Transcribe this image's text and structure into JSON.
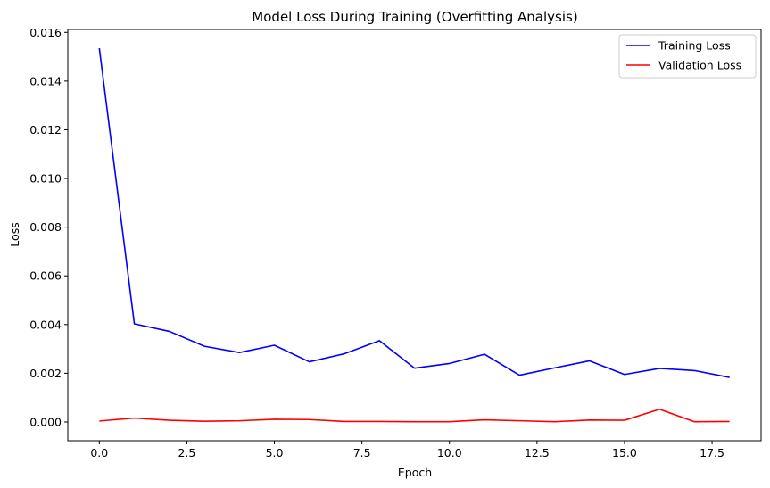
{
  "chart_data": {
    "type": "line",
    "title": "Model Loss During Training (Overfitting Analysis)",
    "xlabel": "Epoch",
    "ylabel": "Loss",
    "xlim": [
      -0.9,
      18.9
    ],
    "ylim": [
      -0.00077,
      0.01612
    ],
    "xticks": [
      0.0,
      2.5,
      5.0,
      7.5,
      10.0,
      12.5,
      15.0,
      17.5
    ],
    "xtick_labels": [
      "0.0",
      "2.5",
      "5.0",
      "7.5",
      "10.0",
      "12.5",
      "15.0",
      "17.5"
    ],
    "yticks": [
      0.0,
      0.002,
      0.004,
      0.006,
      0.008,
      0.01,
      0.012,
      0.014,
      0.016
    ],
    "ytick_labels": [
      "0.000",
      "0.002",
      "0.004",
      "0.006",
      "0.008",
      "0.010",
      "0.012",
      "0.014",
      "0.016"
    ],
    "grid": false,
    "legend_position": "top-right",
    "x": [
      0,
      1,
      2,
      3,
      4,
      5,
      6,
      7,
      8,
      9,
      10,
      11,
      12,
      13,
      14,
      15,
      16,
      17,
      18
    ],
    "series": [
      {
        "name": "Training Loss",
        "color": "#0000ff",
        "values": [
          0.01535,
          0.00403,
          0.00372,
          0.00311,
          0.00285,
          0.00315,
          0.00247,
          0.0028,
          0.00334,
          0.00221,
          0.0024,
          0.00278,
          0.00192,
          0.00222,
          0.00251,
          0.00195,
          0.0022,
          0.00211,
          0.00183
        ]
      },
      {
        "name": "Validation Loss",
        "color": "#ff0000",
        "values": [
          4e-05,
          0.00016,
          7e-05,
          3e-05,
          5e-05,
          0.00011,
          0.0001,
          2e-05,
          2e-05,
          1e-05,
          1e-05,
          9e-05,
          5e-05,
          1e-05,
          8e-05,
          7e-05,
          0.00052,
          1e-05,
          2e-05
        ]
      }
    ]
  }
}
